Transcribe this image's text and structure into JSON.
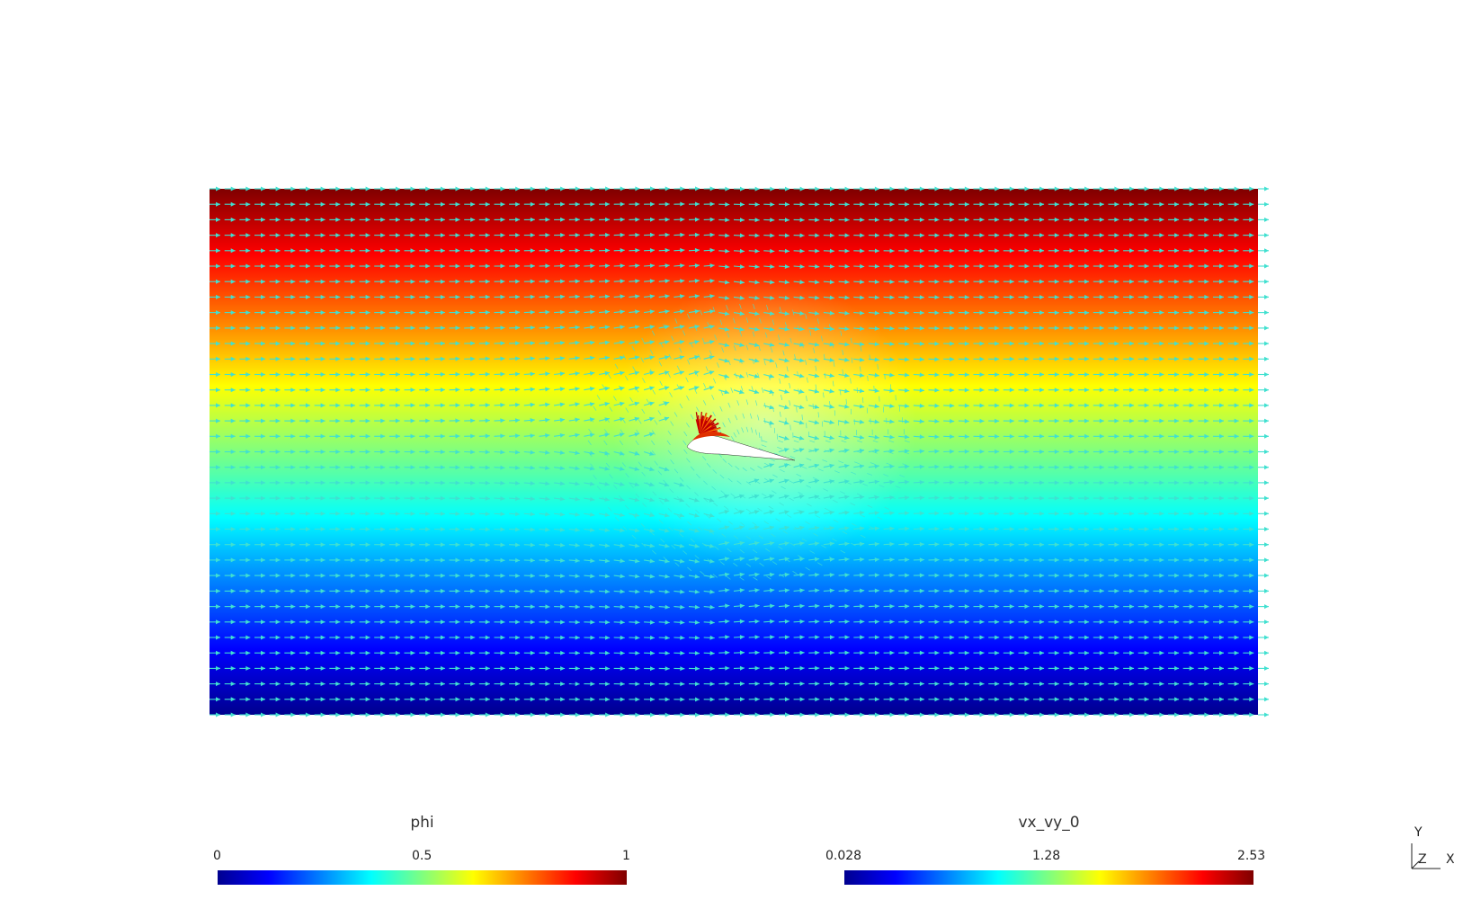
{
  "colorbars": [
    {
      "id": "phi",
      "title": "phi",
      "min_label": "0",
      "mid_label": "0.5",
      "max_label": "1",
      "colormap": [
        "#00008f",
        "#0000ff",
        "#007fff",
        "#00ffff",
        "#7fff7f",
        "#ffff00",
        "#ff7f00",
        "#ff0000",
        "#7f0000"
      ]
    },
    {
      "id": "vx_vy_0",
      "title": "vx_vy_0",
      "min_label": "0.028",
      "mid_label": "1.28",
      "max_label": "2.53",
      "colormap": [
        "#00008f",
        "#0000ff",
        "#007fff",
        "#00ffff",
        "#7fff7f",
        "#ffff00",
        "#ff7f00",
        "#ff0000",
        "#7f0000"
      ]
    }
  ],
  "axes": {
    "y_label": "Y",
    "z_label": "Z",
    "x_label": "X"
  },
  "glyph_color": "#40e0d0",
  "airfoil_fill": "#ffffff"
}
